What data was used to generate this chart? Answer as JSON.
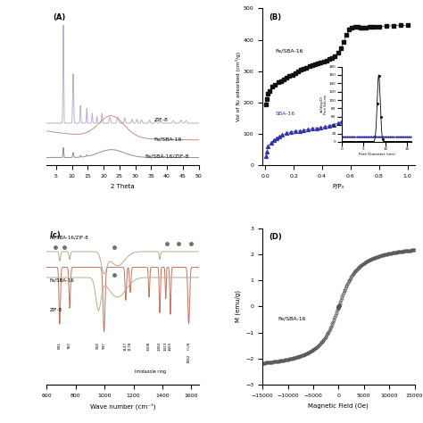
{
  "panel_A": {
    "label": "(A)",
    "xlabel": "2 Theta",
    "xlim": [
      2,
      50
    ],
    "xticks": [
      5,
      10,
      15,
      20,
      25,
      30,
      35,
      40,
      45,
      50
    ],
    "colors": [
      "#b8b0d0",
      "#c89080",
      "#909090"
    ]
  },
  "panel_B": {
    "label": "(B)",
    "xlabel": "P/P₀",
    "ylabel": "Vol of N₂ adsorbed (cm³/g)",
    "xlim": [
      -0.02,
      1.05
    ],
    "ylim": [
      0,
      500
    ],
    "yticks": [
      0,
      100,
      200,
      300,
      400,
      500
    ],
    "colors_square": "#111111",
    "colors_triangle": "#3333aa"
  },
  "panel_C": {
    "label": "(c)",
    "xlabel": "Wave number (cm⁻¹)",
    "xlim": [
      600,
      1650
    ],
    "xticks": [
      600,
      800,
      1000,
      1200,
      1400,
      1600
    ],
    "color_zif8": "#c87060",
    "color_fesba": "#c0a888",
    "color_fesba_zif": "#b8aa90"
  },
  "panel_D": {
    "label": "(D)",
    "xlabel": "Magnetic Field (Oe)",
    "ylabel": "M (emu/g)",
    "xlim": [
      -15000,
      15000
    ],
    "ylim": [
      -3,
      3
    ],
    "yticks": [
      -3,
      -2,
      -1,
      0,
      1,
      2,
      3
    ],
    "xticks": [
      -15000,
      -10000,
      -5000,
      0,
      5000,
      10000,
      15000
    ],
    "label_text": "Fe/SBA-16"
  }
}
